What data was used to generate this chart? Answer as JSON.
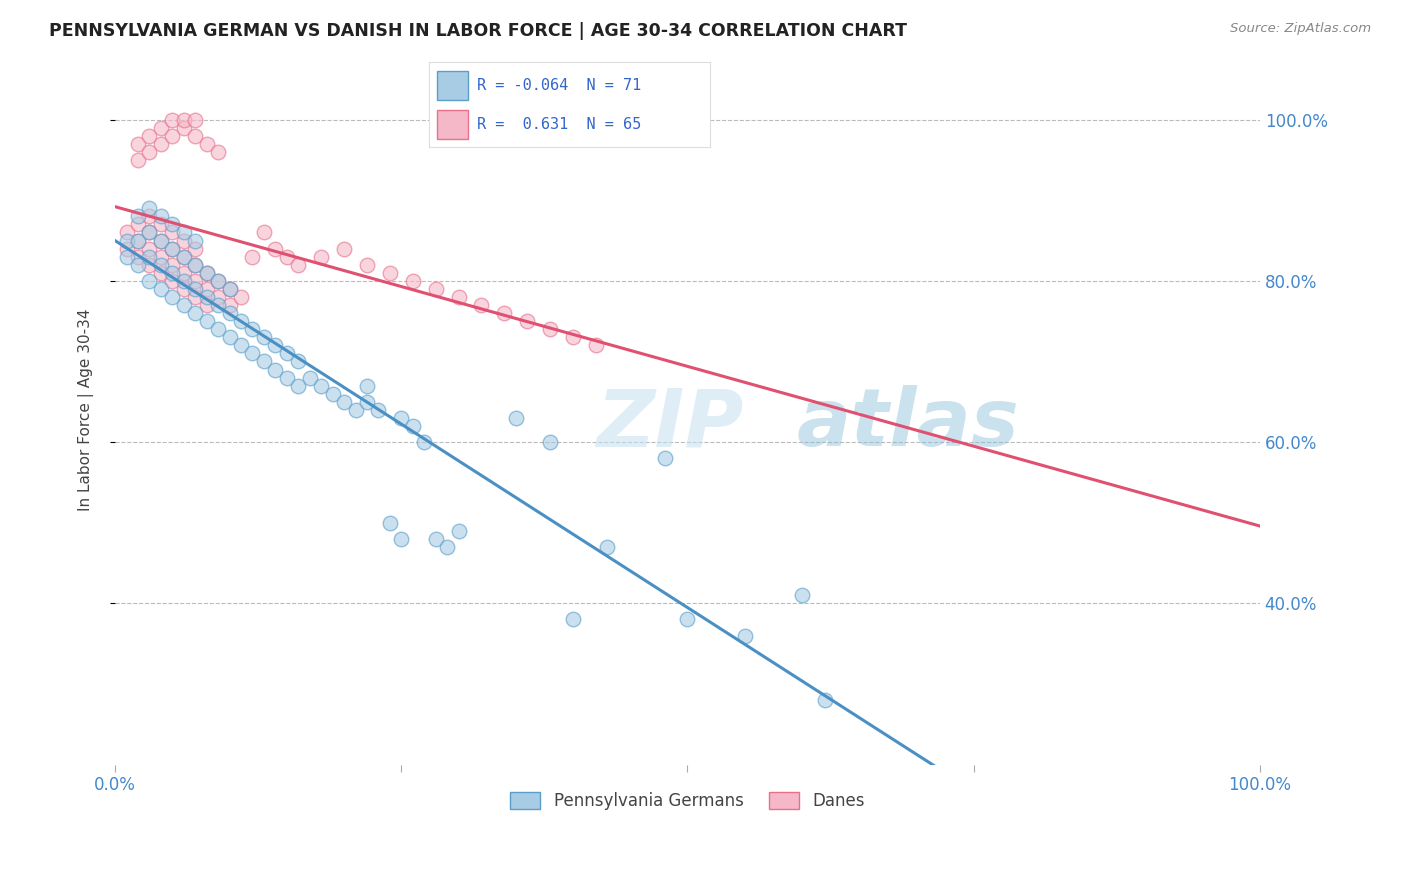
{
  "title": "PENNSYLVANIA GERMAN VS DANISH IN LABOR FORCE | AGE 30-34 CORRELATION CHART",
  "source": "Source: ZipAtlas.com",
  "ylabel": "In Labor Force | Age 30-34",
  "xlim": [
    0.0,
    1.0
  ],
  "ylim": [
    0.2,
    1.08
  ],
  "y_tick_labels": [
    "40.0%",
    "60.0%",
    "80.0%",
    "100.0%"
  ],
  "y_tick_values": [
    0.4,
    0.6,
    0.8,
    1.0
  ],
  "blue_R": -0.064,
  "blue_N": 71,
  "pink_R": 0.631,
  "pink_N": 65,
  "blue_color": "#a8cce4",
  "pink_color": "#f4b8c8",
  "blue_edge_color": "#5a9ec9",
  "pink_edge_color": "#e8708a",
  "blue_line_color": "#4a90c4",
  "pink_line_color": "#e05070",
  "legend_blue_label": "Pennsylvania Germans",
  "legend_pink_label": "Danes",
  "watermark_zip": "ZIP",
  "watermark_atlas": "atlas",
  "blue_points": [
    [
      0.01,
      0.83
    ],
    [
      0.01,
      0.85
    ],
    [
      0.02,
      0.82
    ],
    [
      0.02,
      0.85
    ],
    [
      0.02,
      0.88
    ],
    [
      0.03,
      0.8
    ],
    [
      0.03,
      0.83
    ],
    [
      0.03,
      0.86
    ],
    [
      0.03,
      0.89
    ],
    [
      0.04,
      0.79
    ],
    [
      0.04,
      0.82
    ],
    [
      0.04,
      0.85
    ],
    [
      0.04,
      0.88
    ],
    [
      0.05,
      0.78
    ],
    [
      0.05,
      0.81
    ],
    [
      0.05,
      0.84
    ],
    [
      0.05,
      0.87
    ],
    [
      0.06,
      0.77
    ],
    [
      0.06,
      0.8
    ],
    [
      0.06,
      0.83
    ],
    [
      0.06,
      0.86
    ],
    [
      0.07,
      0.76
    ],
    [
      0.07,
      0.79
    ],
    [
      0.07,
      0.82
    ],
    [
      0.07,
      0.85
    ],
    [
      0.08,
      0.75
    ],
    [
      0.08,
      0.78
    ],
    [
      0.08,
      0.81
    ],
    [
      0.09,
      0.74
    ],
    [
      0.09,
      0.77
    ],
    [
      0.09,
      0.8
    ],
    [
      0.1,
      0.73
    ],
    [
      0.1,
      0.76
    ],
    [
      0.1,
      0.79
    ],
    [
      0.11,
      0.72
    ],
    [
      0.11,
      0.75
    ],
    [
      0.12,
      0.71
    ],
    [
      0.12,
      0.74
    ],
    [
      0.13,
      0.7
    ],
    [
      0.13,
      0.73
    ],
    [
      0.14,
      0.69
    ],
    [
      0.14,
      0.72
    ],
    [
      0.15,
      0.68
    ],
    [
      0.15,
      0.71
    ],
    [
      0.16,
      0.67
    ],
    [
      0.16,
      0.7
    ],
    [
      0.17,
      0.68
    ],
    [
      0.18,
      0.67
    ],
    [
      0.19,
      0.66
    ],
    [
      0.2,
      0.65
    ],
    [
      0.21,
      0.64
    ],
    [
      0.22,
      0.67
    ],
    [
      0.22,
      0.65
    ],
    [
      0.23,
      0.64
    ],
    [
      0.24,
      0.5
    ],
    [
      0.25,
      0.63
    ],
    [
      0.25,
      0.48
    ],
    [
      0.26,
      0.62
    ],
    [
      0.27,
      0.6
    ],
    [
      0.28,
      0.48
    ],
    [
      0.29,
      0.47
    ],
    [
      0.3,
      0.49
    ],
    [
      0.35,
      0.63
    ],
    [
      0.38,
      0.6
    ],
    [
      0.4,
      0.38
    ],
    [
      0.43,
      0.47
    ],
    [
      0.48,
      0.58
    ],
    [
      0.5,
      0.38
    ],
    [
      0.55,
      0.36
    ],
    [
      0.6,
      0.41
    ],
    [
      0.62,
      0.28
    ]
  ],
  "pink_points": [
    [
      0.01,
      0.84
    ],
    [
      0.01,
      0.86
    ],
    [
      0.02,
      0.83
    ],
    [
      0.02,
      0.85
    ],
    [
      0.02,
      0.87
    ],
    [
      0.02,
      0.95
    ],
    [
      0.02,
      0.97
    ],
    [
      0.03,
      0.82
    ],
    [
      0.03,
      0.84
    ],
    [
      0.03,
      0.86
    ],
    [
      0.03,
      0.88
    ],
    [
      0.03,
      0.96
    ],
    [
      0.03,
      0.98
    ],
    [
      0.04,
      0.81
    ],
    [
      0.04,
      0.83
    ],
    [
      0.04,
      0.85
    ],
    [
      0.04,
      0.87
    ],
    [
      0.04,
      0.97
    ],
    [
      0.04,
      0.99
    ],
    [
      0.05,
      0.8
    ],
    [
      0.05,
      0.82
    ],
    [
      0.05,
      0.84
    ],
    [
      0.05,
      0.86
    ],
    [
      0.05,
      0.98
    ],
    [
      0.05,
      1.0
    ],
    [
      0.06,
      0.79
    ],
    [
      0.06,
      0.81
    ],
    [
      0.06,
      0.83
    ],
    [
      0.06,
      0.85
    ],
    [
      0.06,
      0.99
    ],
    [
      0.06,
      1.0
    ],
    [
      0.07,
      0.78
    ],
    [
      0.07,
      0.8
    ],
    [
      0.07,
      0.82
    ],
    [
      0.07,
      0.84
    ],
    [
      0.07,
      0.98
    ],
    [
      0.07,
      1.0
    ],
    [
      0.08,
      0.77
    ],
    [
      0.08,
      0.79
    ],
    [
      0.08,
      0.81
    ],
    [
      0.08,
      0.97
    ],
    [
      0.09,
      0.78
    ],
    [
      0.09,
      0.8
    ],
    [
      0.09,
      0.96
    ],
    [
      0.1,
      0.77
    ],
    [
      0.1,
      0.79
    ],
    [
      0.11,
      0.78
    ],
    [
      0.12,
      0.83
    ],
    [
      0.13,
      0.86
    ],
    [
      0.14,
      0.84
    ],
    [
      0.15,
      0.83
    ],
    [
      0.16,
      0.82
    ],
    [
      0.18,
      0.83
    ],
    [
      0.2,
      0.84
    ],
    [
      0.22,
      0.82
    ],
    [
      0.24,
      0.81
    ],
    [
      0.26,
      0.8
    ],
    [
      0.28,
      0.79
    ],
    [
      0.3,
      0.78
    ],
    [
      0.32,
      0.77
    ],
    [
      0.34,
      0.76
    ],
    [
      0.36,
      0.75
    ],
    [
      0.38,
      0.74
    ],
    [
      0.4,
      0.73
    ],
    [
      0.42,
      0.72
    ]
  ]
}
